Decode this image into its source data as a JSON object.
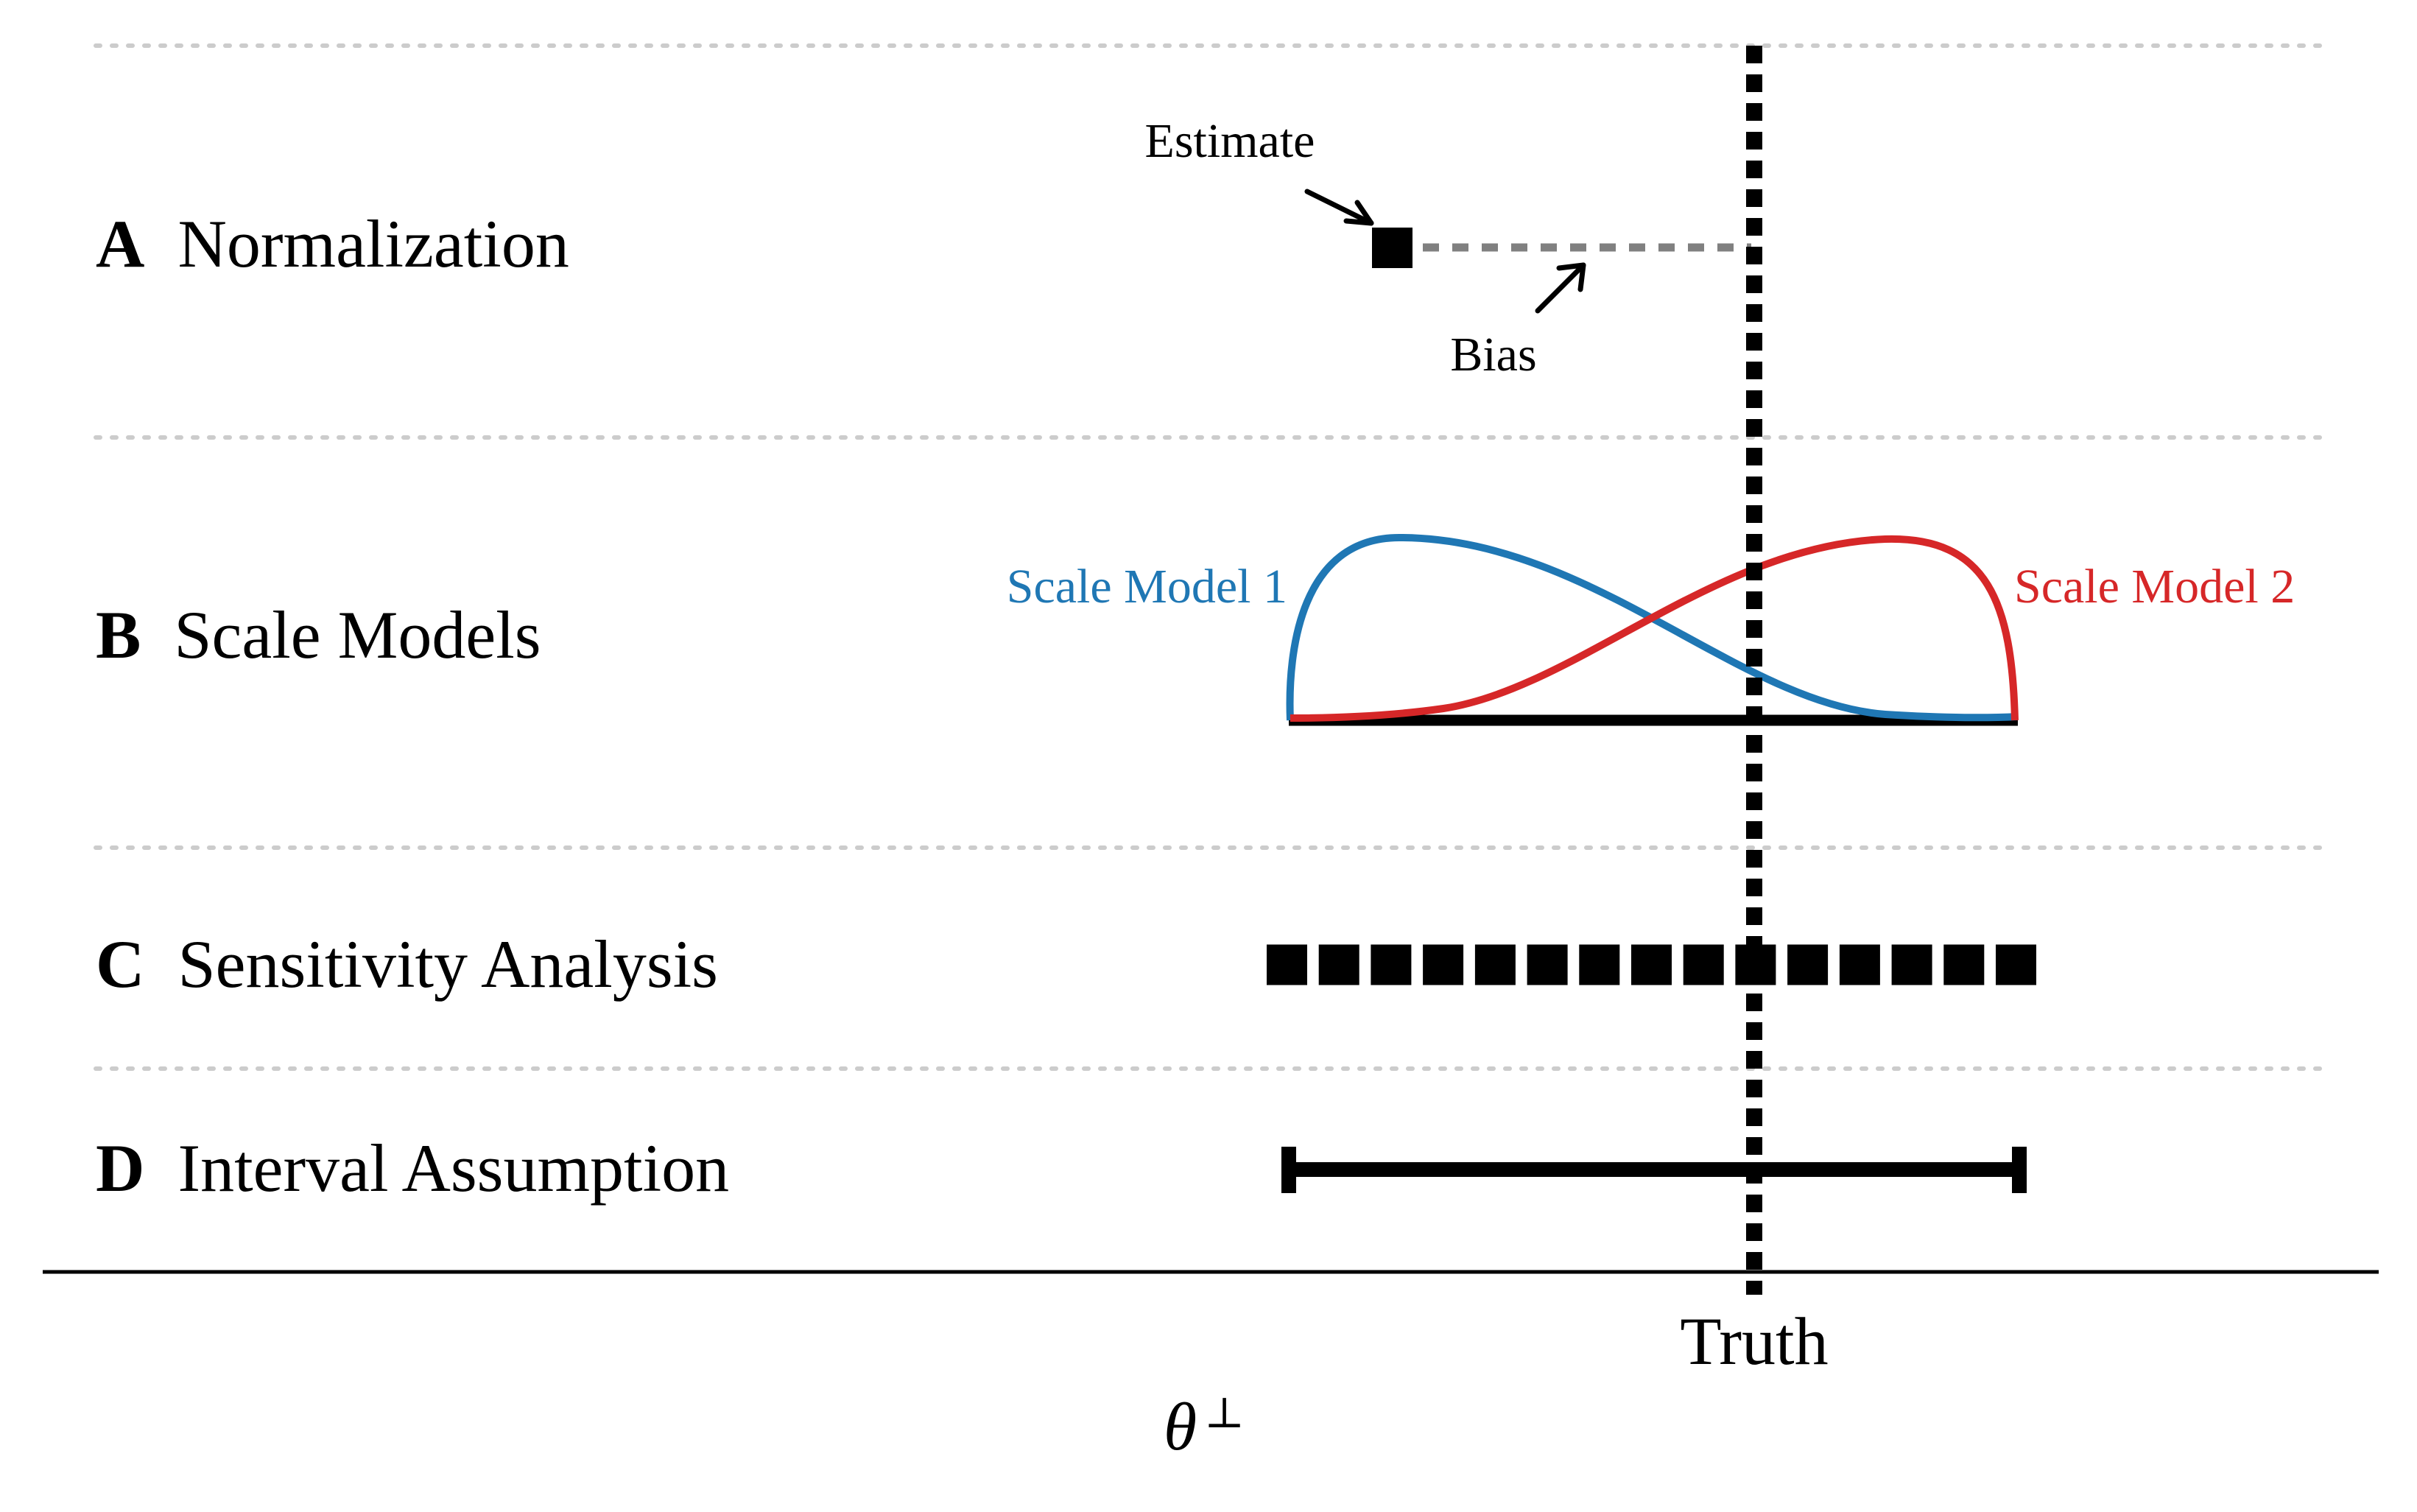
{
  "rows": {
    "a": {
      "letter": "A",
      "label": "Normalization"
    },
    "b": {
      "letter": "B",
      "label": "Scale Models"
    },
    "c": {
      "letter": "C",
      "label": "Sensitivity Analysis"
    },
    "d": {
      "letter": "D",
      "label": "Interval Assumption"
    }
  },
  "annotations": {
    "estimate": "Estimate",
    "bias": "Bias"
  },
  "scale_models": [
    {
      "name": "Scale Model 1",
      "color": "#1f77b4"
    },
    {
      "name": "Scale Model 2",
      "color": "#d62728"
    }
  ],
  "axis": {
    "truth_label": "Truth",
    "symbol": "θ",
    "symbol_superscript": "⊥"
  },
  "colors": {
    "ink": "#000000",
    "bias_dash": "#808080",
    "separator": "#cccccc"
  },
  "sensitivity_marker_count": 15
}
